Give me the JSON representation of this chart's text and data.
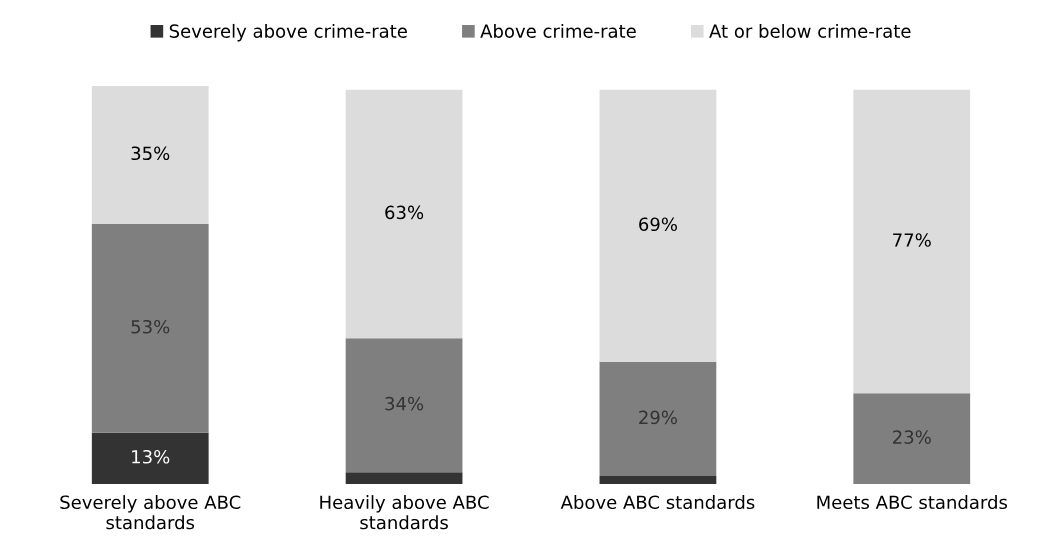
{
  "chart_data": {
    "type": "bar",
    "stacked": true,
    "categories": [
      "Severely above ABC standards",
      "Heavily above ABC standards",
      "Above ABC standards",
      "Meets ABC standards"
    ],
    "series": [
      {
        "name": "Severely above crime-rate",
        "color": "#333333",
        "values": [
          13,
          3,
          2,
          0
        ],
        "value_labels": [
          "13%",
          null,
          null,
          null
        ]
      },
      {
        "name": "Above crime-rate",
        "color": "#7f7f7f",
        "values": [
          53,
          34,
          29,
          23
        ],
        "value_labels": [
          "53%",
          "34%",
          "29%",
          "23%"
        ]
      },
      {
        "name": "At or below crime-rate",
        "color": "#dcdcdc",
        "values": [
          35,
          63,
          69,
          77
        ],
        "value_labels": [
          "35%",
          "63%",
          "69%",
          "77%"
        ]
      }
    ],
    "legend": "top",
    "grid": false
  }
}
